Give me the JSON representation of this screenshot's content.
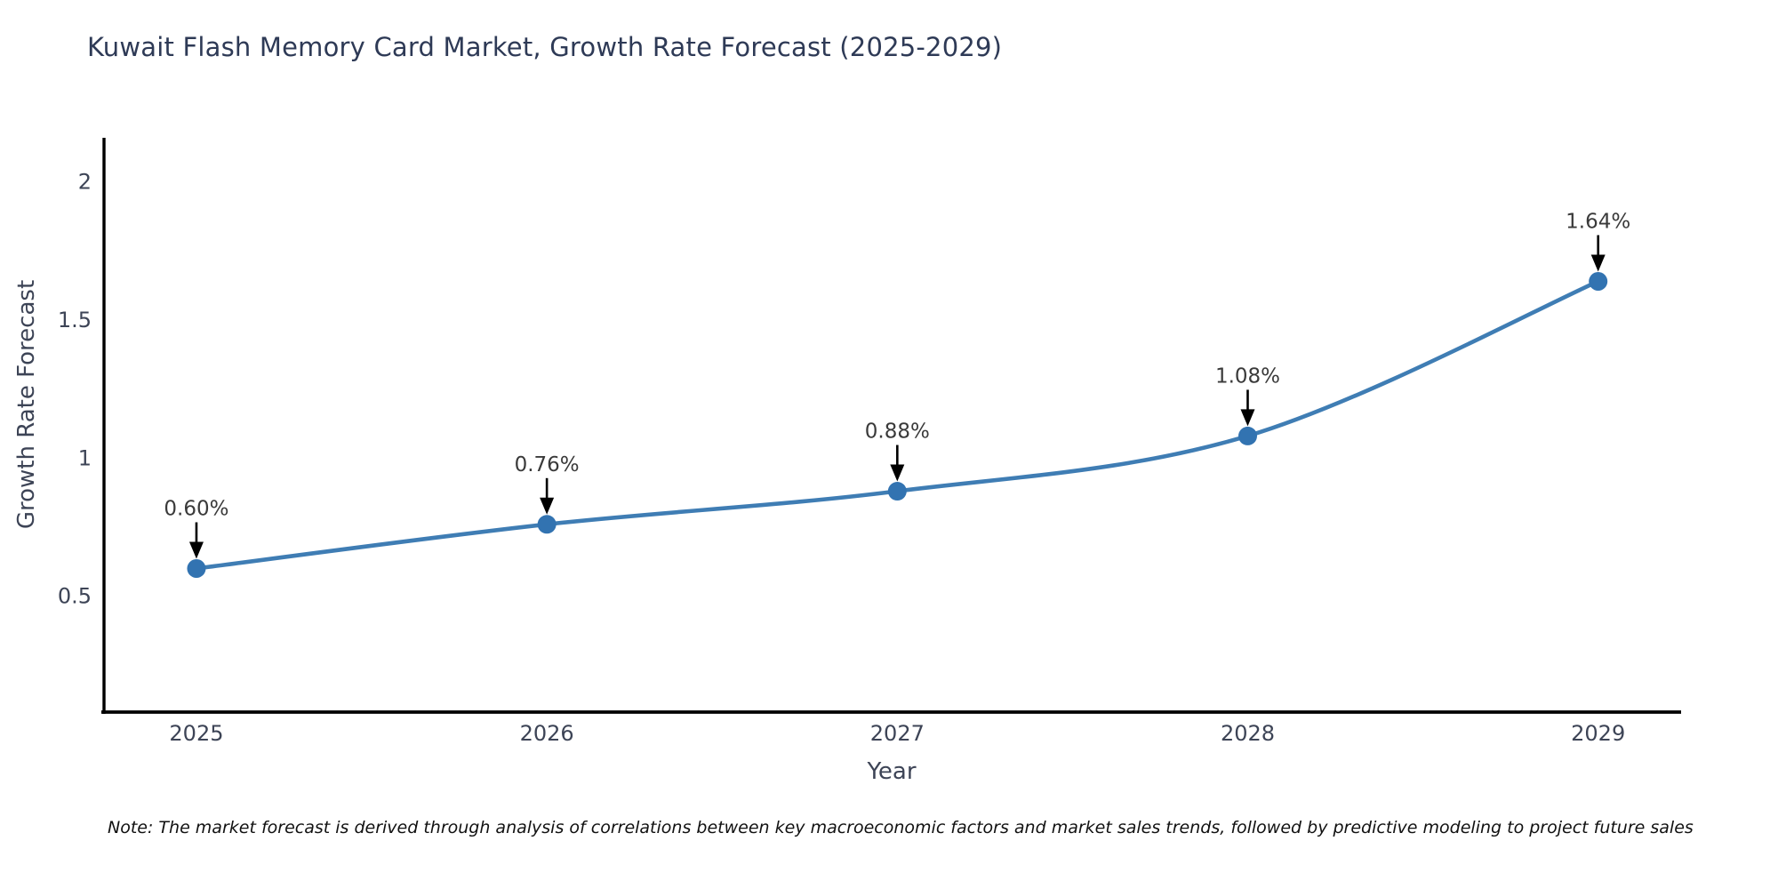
{
  "header": {
    "title": "Kuwait Flash Memory Card Market, Growth Rate Forecast (2025-2029)"
  },
  "chart_data": {
    "type": "line",
    "x": [
      2025,
      2026,
      2027,
      2028,
      2029
    ],
    "xtick_labels": [
      "2025",
      "2026",
      "2027",
      "2028",
      "2029"
    ],
    "values": [
      0.6,
      0.76,
      0.88,
      1.08,
      1.64
    ],
    "point_labels": [
      "0.60%",
      "0.76%",
      "0.88%",
      "1.08%",
      "1.64%"
    ],
    "title": "Kuwait Flash Memory Card Market, Growth Rate Forecast (2025-2029)",
    "xlabel": "Year",
    "ylabel": "Growth Rate Forecast",
    "yticks": [
      0.5,
      1,
      1.5,
      2
    ],
    "ytick_labels": [
      "0.5",
      "1",
      "1.5",
      "2"
    ],
    "ylim": [
      0.08,
      2.16
    ],
    "grid": false,
    "legend_position": "none",
    "colors": {
      "line": "#3f7db4",
      "marker": "#3273b1",
      "annotation_text": "#3a3a3a",
      "arrow": "#000000",
      "spine": "#000000",
      "tick_label": "#3d4456"
    }
  },
  "note": {
    "text": "Note: The market forecast is derived through analysis of correlations between key macroeconomic factors and market sales trends, followed by predictive modeling to project future sales"
  }
}
